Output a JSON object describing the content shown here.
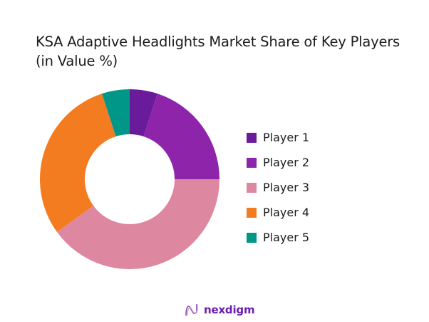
{
  "title": {
    "line1": "KSA Adaptive Headlights Market Share of Key Players",
    "line2": "(in Value %)"
  },
  "chart_data": {
    "type": "pie",
    "subtype": "donut",
    "title": "KSA Adaptive Headlights Market Share of Key Players (in Value %)",
    "categories": [
      "Player 1",
      "Player 2",
      "Player 3",
      "Player 4",
      "Player 5"
    ],
    "values": [
      5,
      20,
      40,
      30,
      5
    ],
    "colors": [
      "#6a1b9a",
      "#8e24aa",
      "#de87a0",
      "#f47c20",
      "#009688"
    ],
    "start_angle_deg": 0,
    "direction": "clockwise",
    "legend_position": "right",
    "data_labels": false
  },
  "legend": {
    "items": [
      {
        "label": "Player 1",
        "color": "#6a1b9a"
      },
      {
        "label": "Player 2",
        "color": "#8e24aa"
      },
      {
        "label": "Player 3",
        "color": "#de87a0"
      },
      {
        "label": "Player 4",
        "color": "#f47c20"
      },
      {
        "label": "Player 5",
        "color": "#009688"
      }
    ]
  },
  "logo": {
    "text": "nexdigm",
    "icon": "nexdigm-wave-icon"
  }
}
